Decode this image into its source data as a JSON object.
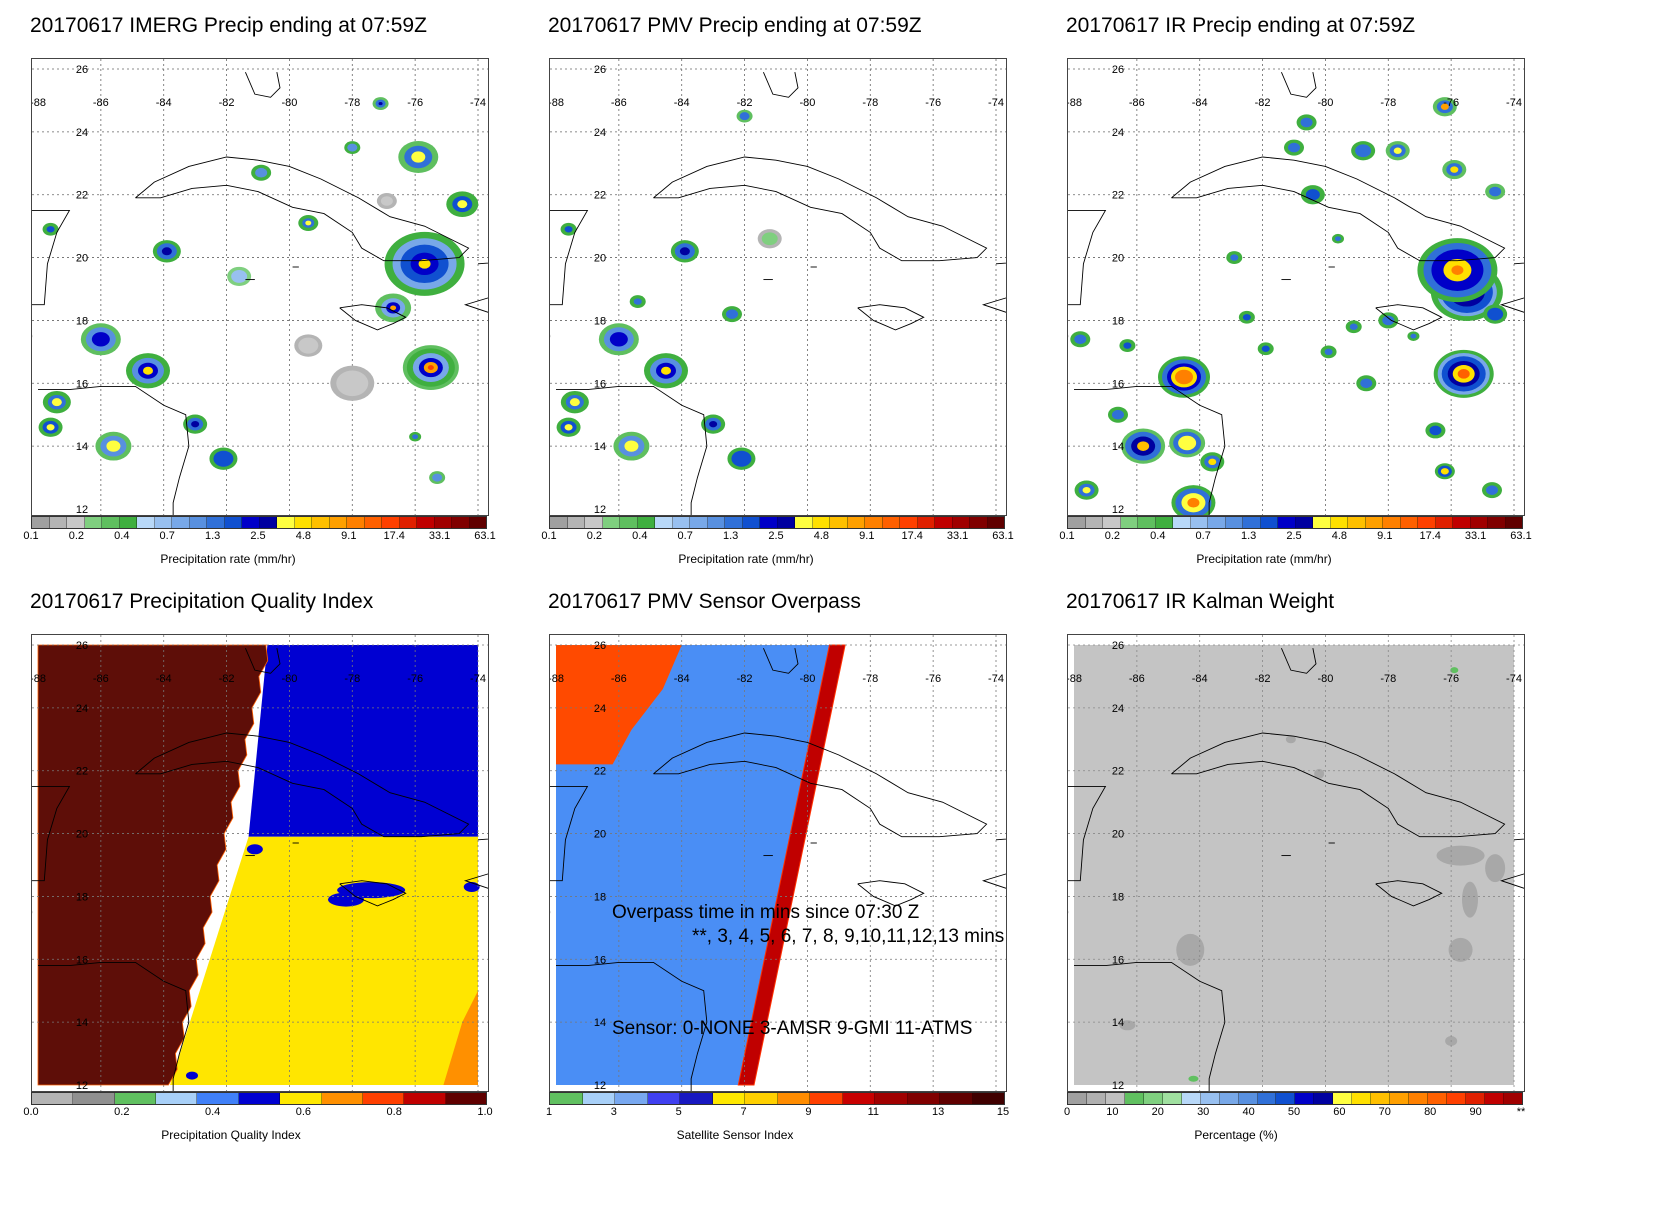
{
  "panels": [
    {
      "id": "imerg",
      "title": "20170617 IMERG Precip ending at 07:59Z",
      "colorbar_title": "Precipitation rate (mm/hr)",
      "colorbar_labels": [
        "0.1",
        "0.2",
        "0.4",
        "0.7",
        "1.3",
        "2.5",
        "4.8",
        "9.1",
        "17.4",
        "33.1",
        "63.1"
      ]
    },
    {
      "id": "pmv",
      "title": "20170617 PMV Precip ending at 07:59Z",
      "colorbar_title": "Precipitation rate (mm/hr)",
      "colorbar_labels": [
        "0.1",
        "0.2",
        "0.4",
        "0.7",
        "1.3",
        "2.5",
        "4.8",
        "9.1",
        "17.4",
        "33.1",
        "63.1"
      ]
    },
    {
      "id": "ir",
      "title": "20170617 IR Precip ending at 07:59Z",
      "colorbar_title": "Precipitation rate (mm/hr)",
      "colorbar_labels": [
        "0.1",
        "0.2",
        "0.4",
        "0.7",
        "1.3",
        "2.5",
        "4.8",
        "9.1",
        "17.4",
        "33.1",
        "63.1"
      ]
    },
    {
      "id": "pqi",
      "title": "20170617 Precipitation Quality Index",
      "colorbar_title": "Precipitation Quality Index",
      "colorbar_labels": [
        "0.0",
        "0.2",
        "0.4",
        "0.6",
        "0.8",
        "1.0"
      ]
    },
    {
      "id": "overpass",
      "title": "20170617 PMV Sensor Overpass",
      "colorbar_title": "Satellite Sensor Index",
      "colorbar_labels": [
        "1",
        "3",
        "5",
        "7",
        "9",
        "11",
        "13",
        "15"
      ],
      "annotation_line1": "Overpass time in mins since 07:30 Z",
      "annotation_line2": "**, 3, 4, 5, 6, 7, 8, 9,10,11,12,13 mins",
      "annotation_line3": "Sensor:   0-NONE  3-AMSR  9-GMI 11-ATMS"
    },
    {
      "id": "kalman",
      "title": "20170617 IR Kalman Weight",
      "colorbar_title": "Percentage (%)",
      "colorbar_labels": [
        "0",
        "10",
        "20",
        "30",
        "40",
        "50",
        "60",
        "70",
        "80",
        "90",
        "**"
      ]
    }
  ],
  "lon_labels": [
    "-88",
    "-86",
    "-84",
    "-82",
    "-80",
    "-78",
    "-76",
    "-74"
  ],
  "lat_labels": [
    "26",
    "24",
    "22",
    "20",
    "18",
    "16",
    "14",
    "12"
  ],
  "colors": {
    "precip_scale": [
      "#a0a0a0",
      "#b4b4b4",
      "#c8c8c8",
      "#7fcf7f",
      "#5fbf5f",
      "#3faf3f",
      "#b8d8f8",
      "#98c0f0",
      "#78a8e8",
      "#5890e0",
      "#3070d8",
      "#1050d0",
      "#0000c8",
      "#0000a0",
      "#ffff40",
      "#ffe000",
      "#ffc000",
      "#ffa000",
      "#ff8000",
      "#ff6000",
      "#ff4000",
      "#e02000",
      "#c00000",
      "#a00000",
      "#800000",
      "#600000"
    ],
    "pqi_scale": [
      "#b4b4b4",
      "#909090",
      "#60c060",
      "#a8d0f8",
      "#4080f8",
      "#0000d0",
      "#ffe800",
      "#ff9000",
      "#ff4000",
      "#c00000",
      "#600000"
    ],
    "sensor_scale": [
      "#60c060",
      "#a8d0f8",
      "#78a8f0",
      "#4040f0",
      "#1818c0",
      "#ffe800",
      "#ffd000",
      "#ff8c00",
      "#ff4000",
      "#c80000",
      "#a00000",
      "#800000",
      "#600000",
      "#400000"
    ],
    "kalman_scale": [
      "#a0a0a0",
      "#b0b0b0",
      "#c0c0c0",
      "#60c060",
      "#80d080",
      "#a0e0a0",
      "#b8d8f8",
      "#98c0f0",
      "#78a8e8",
      "#5890e0",
      "#3070d8",
      "#1050d0",
      "#0000c8",
      "#0000a0",
      "#ffff40",
      "#ffe000",
      "#ffc000",
      "#ffa000",
      "#ff8000",
      "#ff6000",
      "#ff4000",
      "#e02000",
      "#c00000",
      "#a00000"
    ],
    "pqi_brown": "#5e0e08",
    "pqi_blue": "#0000d2",
    "pqi_yellow": "#ffe600",
    "overpass_orange": "#ff4a00",
    "overpass_blue": "#4a8ef5",
    "overpass_red": "#c00000",
    "kalman_gray": "#c4c4c4"
  }
}
